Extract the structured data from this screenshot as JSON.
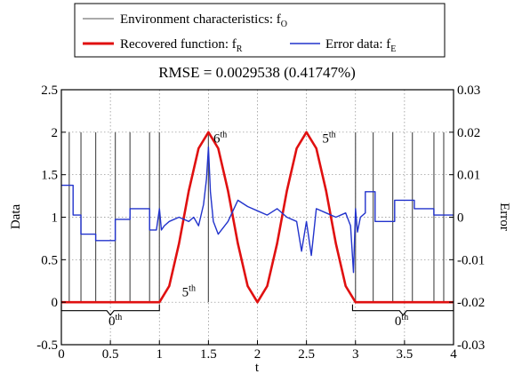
{
  "chart_data": {
    "type": "line",
    "title": "RMSE = 0.0029538 (0.41747%)",
    "xlabel": "t",
    "ylabel": "Data",
    "y2label": "Error",
    "xlim": [
      0,
      4
    ],
    "ylim": [
      -0.5,
      2.5
    ],
    "y2lim": [
      -0.03,
      0.03
    ],
    "grid": true,
    "legend_position": "top",
    "x_ticks": [
      "0",
      "0.5",
      "1",
      "1.5",
      "2",
      "2.5",
      "3",
      "3.5",
      "4"
    ],
    "y_ticks": [
      "-0.5",
      "0",
      "0.5",
      "1",
      "1.5",
      "2",
      "2.5"
    ],
    "y2_ticks": [
      "-0.03",
      "-0.02",
      "-0.01",
      "0",
      "0.01",
      "0.02",
      "0.03"
    ],
    "legend": [
      {
        "name": "Environment characteristics: f",
        "sub": "O",
        "color": "#555555"
      },
      {
        "name": "Recovered function: f",
        "sub": "R",
        "color": "#e01010"
      },
      {
        "name": "Error data: f",
        "sub": "E",
        "color": "#2233cc"
      }
    ],
    "series": [
      {
        "name": "Environment characteristics: fO",
        "kind": "impulses",
        "axis": "left",
        "color": "#555555",
        "x": [
          0.08,
          0.2,
          0.35,
          0.55,
          0.7,
          0.9,
          1.0,
          1.5,
          3.0,
          3.18,
          3.38,
          3.58,
          3.8,
          3.9
        ],
        "y": [
          2,
          2,
          2,
          2,
          2,
          2,
          2,
          2,
          2,
          2,
          2,
          2,
          2,
          2
        ]
      },
      {
        "name": "Recovered function: fR",
        "kind": "line",
        "axis": "left",
        "color": "#e01010",
        "x": [
          0,
          0.5,
          0.97,
          1.0,
          1.1,
          1.2,
          1.3,
          1.4,
          1.5,
          1.6,
          1.7,
          1.8,
          1.9,
          2.0,
          2.1,
          2.2,
          2.3,
          2.4,
          2.5,
          2.6,
          2.7,
          2.8,
          2.9,
          3.0,
          3.5,
          4.0
        ],
        "y": [
          0.0,
          0.0,
          0.0,
          0.0,
          0.19,
          0.69,
          1.31,
          1.81,
          2.0,
          1.81,
          1.31,
          0.69,
          0.19,
          0.0,
          0.19,
          0.69,
          1.31,
          1.81,
          2.0,
          1.81,
          1.31,
          0.69,
          0.19,
          0.0,
          0.0,
          0.0
        ]
      },
      {
        "name": "Error data: fE",
        "kind": "line",
        "axis": "right",
        "color": "#2233cc",
        "x": [
          0,
          0.12,
          0.12,
          0.2,
          0.2,
          0.35,
          0.35,
          0.55,
          0.55,
          0.7,
          0.7,
          0.9,
          0.9,
          0.97,
          1.0,
          1.02,
          1.05,
          1.1,
          1.2,
          1.3,
          1.35,
          1.4,
          1.45,
          1.48,
          1.5,
          1.52,
          1.55,
          1.6,
          1.7,
          1.8,
          1.9,
          2.0,
          2.1,
          2.2,
          2.3,
          2.4,
          2.45,
          2.5,
          2.55,
          2.6,
          2.7,
          2.8,
          2.9,
          2.95,
          2.98,
          3.0,
          3.02,
          3.05,
          3.1,
          3.1,
          3.2,
          3.2,
          3.4,
          3.4,
          3.6,
          3.6,
          3.8,
          3.8,
          4.0
        ],
        "y": [
          0.0075,
          0.0075,
          0.0005,
          0.0005,
          -0.004,
          -0.004,
          -0.0055,
          -0.0055,
          -0.0005,
          -0.0005,
          0.002,
          0.002,
          -0.003,
          -0.003,
          0.002,
          -0.003,
          -0.002,
          -0.001,
          0.0,
          -0.001,
          0.0,
          -0.002,
          0.003,
          0.009,
          0.0165,
          0.006,
          -0.001,
          -0.004,
          -0.001,
          0.004,
          0.0025,
          0.0015,
          0.0005,
          0.002,
          0.0,
          -0.001,
          -0.008,
          -0.001,
          -0.009,
          0.002,
          0.001,
          0.0,
          0.001,
          -0.002,
          -0.013,
          0.002,
          -0.0035,
          0.0,
          0.001,
          0.006,
          0.006,
          -0.001,
          -0.001,
          0.004,
          0.004,
          0.002,
          0.002,
          0.0005,
          0.0005
        ]
      }
    ],
    "annotations": [
      {
        "text": "6",
        "sup": "th",
        "x": 1.62,
        "y": 1.88
      },
      {
        "text": "5",
        "sup": "th",
        "x": 2.73,
        "y": 1.88
      },
      {
        "text": "5",
        "sup": "th",
        "x": 1.3,
        "y": 0.07
      },
      {
        "text": "0",
        "sup": "th",
        "x": 0.55,
        "y": -0.27
      },
      {
        "text": "0",
        "sup": "th",
        "x": 3.47,
        "y": -0.27
      }
    ],
    "braces": [
      {
        "x1": 0.0,
        "x2": 1.0,
        "y": -0.1
      },
      {
        "x1": 2.97,
        "x2": 4.0,
        "y": -0.1
      }
    ]
  }
}
